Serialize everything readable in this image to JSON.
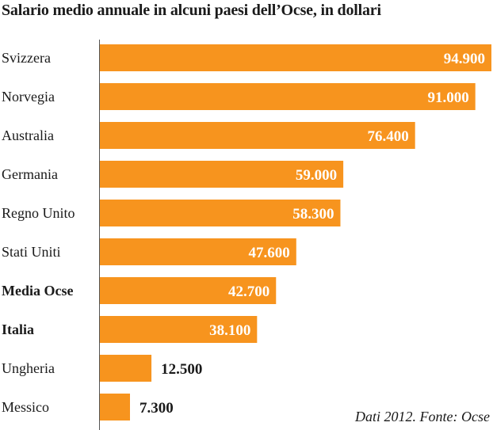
{
  "chart_data": {
    "type": "bar",
    "orientation": "horizontal",
    "title": "Salario medio annuale in alcuni paesi dell’Ocse, in dollari",
    "xlabel": "",
    "ylabel": "",
    "xlim": [
      0,
      94900
    ],
    "grid": false,
    "categories": [
      "Svizzera",
      "Norvegia",
      "Australia",
      "Germania",
      "Regno Unito",
      "Stati Uniti",
      "Media Ocse",
      "Italia",
      "Ungheria",
      "Messico"
    ],
    "values": [
      94900,
      91000,
      76400,
      59000,
      58300,
      47600,
      42700,
      38100,
      12500,
      7300
    ],
    "value_labels": [
      "94.900",
      "91.000",
      "76.400",
      "59.000",
      "58.300",
      "47.600",
      "42.700",
      "38.100",
      "12.500",
      "7.300"
    ],
    "bold_categories": [
      "Media Ocse",
      "Italia"
    ],
    "bar_color": "#F7941E",
    "annotation": "Dati 2012. Fonte: Ocse"
  }
}
